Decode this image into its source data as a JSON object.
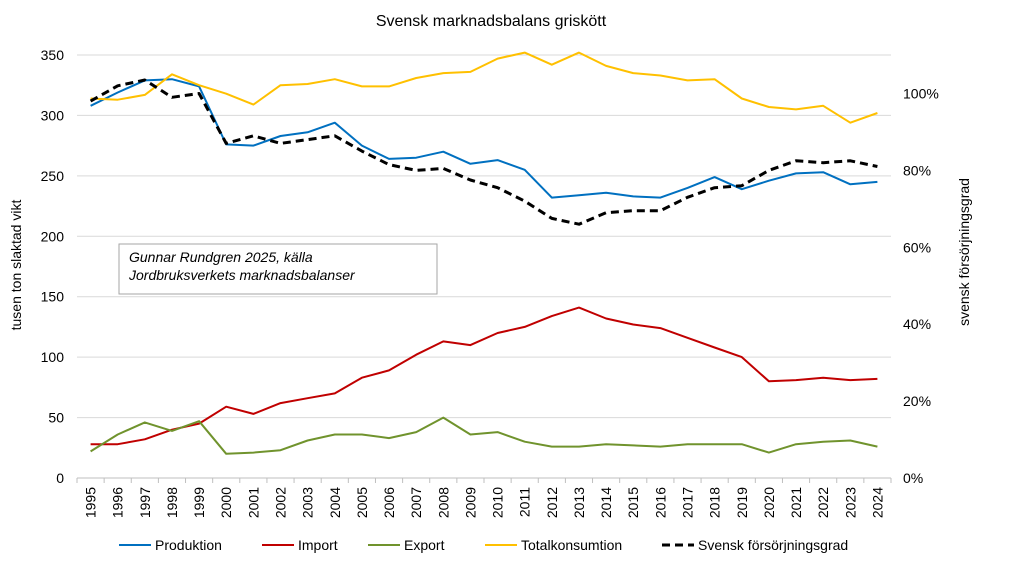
{
  "chart_data": {
    "type": "line",
    "title": "Svensk marknadsbalans  griskött",
    "ylabel": "tusen ton slaktad vikt",
    "y2label": "svensk försörjningsgrad",
    "ylim": [
      0,
      350
    ],
    "y2lim": [
      0,
      1.1
    ],
    "y_ticks": [
      "0",
      "50",
      "100",
      "150",
      "200",
      "250",
      "300",
      "350"
    ],
    "y2_ticks": [
      "0%",
      "20%",
      "40%",
      "60%",
      "80%",
      "100%"
    ],
    "x": [
      "1995",
      "1996",
      "1997",
      "1998",
      "1999",
      "2000",
      "2001",
      "2002",
      "2003",
      "2004",
      "2005",
      "2006",
      "2007",
      "2008",
      "2009",
      "2010",
      "2011",
      "2012",
      "2013",
      "2014",
      "2015",
      "2016",
      "2017",
      "2018",
      "2019",
      "2020",
      "2021",
      "2022",
      "2023",
      "2024"
    ],
    "grid": "horizontal",
    "legend_position": "bottom",
    "annotation": [
      "Gunnar Rundgren 2025, källa",
      "Jordbruksverkets marknadsbalanser"
    ],
    "series": [
      {
        "name": "Produktion",
        "axis": "left",
        "color": "#0070c0",
        "dash": false,
        "values": [
          308,
          319,
          329,
          330,
          324,
          276,
          275,
          283,
          286,
          294,
          275,
          264,
          265,
          270,
          260,
          263,
          255,
          232,
          234,
          236,
          233,
          232,
          240,
          249,
          239,
          246,
          252,
          253,
          243,
          245
        ]
      },
      {
        "name": "Import",
        "axis": "left",
        "color": "#c00000",
        "dash": false,
        "values": [
          28,
          28,
          32,
          40,
          45,
          59,
          53,
          62,
          66,
          70,
          83,
          89,
          102,
          113,
          110,
          120,
          125,
          134,
          141,
          132,
          127,
          124,
          116,
          108,
          100,
          80,
          81,
          83,
          81,
          82
        ]
      },
      {
        "name": "Export",
        "axis": "left",
        "color": "#70932d",
        "dash": false,
        "values": [
          22,
          36,
          46,
          39,
          47,
          20,
          21,
          23,
          31,
          36,
          36,
          33,
          38,
          50,
          36,
          38,
          30,
          26,
          26,
          28,
          27,
          26,
          28,
          28,
          28,
          21,
          28,
          30,
          31,
          26
        ]
      },
      {
        "name": "Totalkonsumtion",
        "axis": "left",
        "color": "#ffc000",
        "dash": false,
        "values": [
          314,
          313,
          317,
          334,
          325,
          318,
          309,
          325,
          326,
          330,
          324,
          324,
          331,
          335,
          336,
          347,
          352,
          342,
          352,
          341,
          335,
          333,
          329,
          330,
          314,
          307,
          305,
          308,
          294,
          302
        ]
      },
      {
        "name": "Svensk försörjningsgrad",
        "axis": "right",
        "color": "#000000",
        "dash": true,
        "values": [
          0.98,
          1.02,
          1.035,
          0.99,
          1.0,
          0.87,
          0.89,
          0.87,
          0.88,
          0.89,
          0.85,
          0.815,
          0.8,
          0.805,
          0.775,
          0.755,
          0.72,
          0.675,
          0.66,
          0.69,
          0.695,
          0.695,
          0.73,
          0.755,
          0.76,
          0.8,
          0.825,
          0.82,
          0.825,
          0.81
        ]
      }
    ]
  }
}
